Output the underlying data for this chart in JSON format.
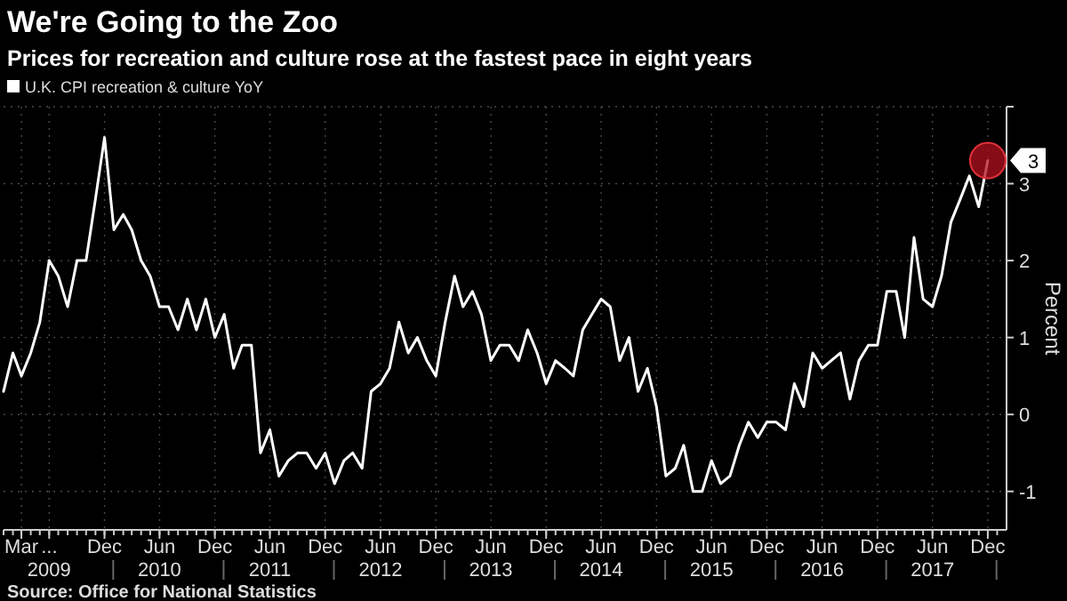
{
  "chart_data": {
    "type": "line",
    "title": "We're Going to the Zoo",
    "subtitle": "Prices for recreation and culture rose at the fastest pace in eight years",
    "ylabel": "Percent",
    "legend": "top left",
    "grid": true,
    "x": [
      "2009-01",
      "2009-02",
      "2009-03",
      "2009-04",
      "2009-05",
      "2009-06",
      "2009-07",
      "2009-08",
      "2009-09",
      "2009-10",
      "2009-11",
      "2009-12",
      "2010-01",
      "2010-02",
      "2010-03",
      "2010-04",
      "2010-05",
      "2010-06",
      "2010-07",
      "2010-08",
      "2010-09",
      "2010-10",
      "2010-11",
      "2010-12",
      "2011-01",
      "2011-02",
      "2011-03",
      "2011-04",
      "2011-05",
      "2011-06",
      "2011-07",
      "2011-08",
      "2011-09",
      "2011-10",
      "2011-11",
      "2011-12",
      "2012-01",
      "2012-02",
      "2012-03",
      "2012-04",
      "2012-05",
      "2012-06",
      "2012-07",
      "2012-08",
      "2012-09",
      "2012-10",
      "2012-11",
      "2012-12",
      "2013-01",
      "2013-02",
      "2013-03",
      "2013-04",
      "2013-05",
      "2013-06",
      "2013-07",
      "2013-08",
      "2013-09",
      "2013-10",
      "2013-11",
      "2013-12",
      "2014-01",
      "2014-02",
      "2014-03",
      "2014-04",
      "2014-05",
      "2014-06",
      "2014-07",
      "2014-08",
      "2014-09",
      "2014-10",
      "2014-11",
      "2014-12",
      "2015-01",
      "2015-02",
      "2015-03",
      "2015-04",
      "2015-05",
      "2015-06",
      "2015-07",
      "2015-08",
      "2015-09",
      "2015-10",
      "2015-11",
      "2015-12",
      "2016-01",
      "2016-02",
      "2016-03",
      "2016-04",
      "2016-05",
      "2016-06",
      "2016-07",
      "2016-08",
      "2016-09",
      "2016-10",
      "2016-11",
      "2016-12",
      "2017-01",
      "2017-02",
      "2017-03",
      "2017-04",
      "2017-05",
      "2017-06",
      "2017-07",
      "2017-08",
      "2017-09",
      "2017-10",
      "2017-11",
      "2017-12"
    ],
    "series": [
      {
        "name": "U.K. CPI recreation & culture YoY",
        "color": "#ffffff",
        "values": [
          0.3,
          0.8,
          0.5,
          0.8,
          1.2,
          2.0,
          1.8,
          1.4,
          2.0,
          2.0,
          2.8,
          3.6,
          2.4,
          2.6,
          2.4,
          2.0,
          1.8,
          1.4,
          1.4,
          1.1,
          1.5,
          1.1,
          1.5,
          1.0,
          1.3,
          0.6,
          0.9,
          0.9,
          -0.5,
          -0.2,
          -0.8,
          -0.6,
          -0.5,
          -0.5,
          -0.7,
          -0.5,
          -0.9,
          -0.6,
          -0.5,
          -0.7,
          0.3,
          0.4,
          0.6,
          1.2,
          0.8,
          1.0,
          0.7,
          0.5,
          1.2,
          1.8,
          1.4,
          1.6,
          1.3,
          0.7,
          0.9,
          0.9,
          0.7,
          1.1,
          0.8,
          0.4,
          0.7,
          0.6,
          0.5,
          1.1,
          1.3,
          1.5,
          1.4,
          0.7,
          1.0,
          0.3,
          0.6,
          0.1,
          -0.8,
          -0.7,
          -0.4,
          -1.0,
          -1.0,
          -0.6,
          -0.9,
          -0.8,
          -0.4,
          -0.1,
          -0.3,
          -0.1,
          -0.1,
          -0.2,
          0.4,
          0.1,
          0.8,
          0.6,
          0.7,
          0.8,
          0.2,
          0.7,
          0.9,
          0.9,
          1.6,
          1.6,
          1.0,
          2.3,
          1.5,
          1.4,
          1.8,
          2.5,
          2.8,
          3.1,
          2.7,
          3.3
        ],
        "value_labels": [
          null,
          null,
          null,
          null,
          null,
          null,
          null,
          null,
          null,
          null,
          null,
          null,
          null,
          null,
          null,
          null,
          null,
          null,
          null,
          null,
          null,
          null,
          null,
          null,
          null,
          null,
          null,
          null,
          null,
          null,
          null,
          null,
          null,
          null,
          null,
          null,
          null,
          null,
          null,
          null,
          null,
          null,
          null,
          null,
          null,
          null,
          null,
          null,
          null,
          null,
          null,
          null,
          null,
          null,
          null,
          null,
          null,
          null,
          null,
          null,
          null,
          null,
          null,
          null,
          null,
          null,
          null,
          null,
          null,
          null,
          null,
          null,
          null,
          null,
          null,
          null,
          null,
          null,
          null,
          null,
          null,
          null,
          null,
          null,
          null,
          null,
          null,
          null,
          null,
          null,
          null,
          null,
          null,
          null,
          null,
          null,
          null,
          null,
          null,
          null,
          null,
          null,
          null,
          null,
          null,
          null,
          null,
          "3"
        ]
      }
    ],
    "xlim": [
      "2009-01",
      "2018-02"
    ],
    "xticks": [
      {
        "value": "2009-03",
        "label": "Mar"
      },
      {
        "value": "2009-06",
        "label": "...\n2009"
      },
      {
        "value": "2009-12",
        "label": "Dec"
      },
      {
        "value": "2010-06",
        "label": "Jun\n2010"
      },
      {
        "value": "2010-12",
        "label": "Dec"
      },
      {
        "value": "2011-06",
        "label": "Jun\n2011"
      },
      {
        "value": "2011-12",
        "label": "Dec"
      },
      {
        "value": "2012-06",
        "label": "Jun\n2012"
      },
      {
        "value": "2012-12",
        "label": "Dec"
      },
      {
        "value": "2013-06",
        "label": "Jun\n2013"
      },
      {
        "value": "2013-12",
        "label": "Dec"
      },
      {
        "value": "2014-06",
        "label": "Jun\n2014"
      },
      {
        "value": "2014-12",
        "label": "Dec"
      },
      {
        "value": "2015-06",
        "label": "Jun\n2015"
      },
      {
        "value": "2015-12",
        "label": "Dec"
      },
      {
        "value": "2016-06",
        "label": "Jun\n2016"
      },
      {
        "value": "2016-12",
        "label": "Dec"
      },
      {
        "value": "2017-06",
        "label": "Jun\n2017"
      },
      {
        "value": "2017-12",
        "label": "Dec"
      }
    ],
    "ylim": [
      -1.5,
      4
    ],
    "yticks": [
      -1,
      0,
      1,
      2,
      3,
      {
        "value": 4,
        "label": null
      }
    ],
    "annotations": [
      "Source: Office for National Statistics"
    ]
  }
}
